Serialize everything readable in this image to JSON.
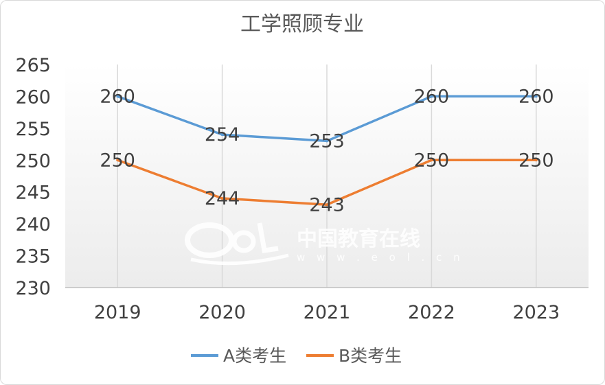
{
  "chart_data": {
    "type": "line",
    "title": "工学照顾专业",
    "categories": [
      "2019",
      "2020",
      "2021",
      "2022",
      "2023"
    ],
    "series": [
      {
        "name": "A类考生",
        "color": "#5b9bd5",
        "values": [
          260,
          254,
          253,
          260,
          260
        ]
      },
      {
        "name": "B类考生",
        "color": "#ed7d31",
        "values": [
          250,
          244,
          243,
          250,
          250
        ]
      }
    ],
    "ylim": [
      230,
      265
    ],
    "yticks": [
      "265",
      "260",
      "255",
      "250",
      "245",
      "240",
      "235",
      "230"
    ],
    "grid": "vertical",
    "legend": "bottom",
    "data_labels": true
  },
  "watermark": {
    "text": "中国教育在线",
    "url": "w w w . e o l . c n"
  }
}
